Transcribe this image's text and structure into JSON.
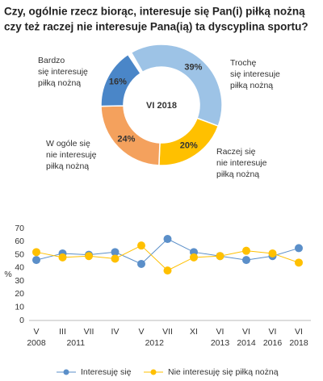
{
  "chart_data": [
    {
      "type": "donut",
      "title": [
        "Czy, ogólnie rzecz biorąc, interesuje się Pan(i) piłką nożną",
        "czy też raczej nie interesuje Pana(ią) ta dyscyplina sportu?"
      ],
      "center_label": "VI 2018",
      "categories": [
        [
          "Trochę",
          "się interesuje",
          "piłką nożną"
        ],
        [
          "Raczej się",
          "nie interesuje",
          "piłką nożną"
        ],
        [
          "W ogóle się",
          "nie interesuję",
          "piłką nożną"
        ],
        [
          "Bardzo",
          "się interesuję",
          "piłką nożną"
        ]
      ],
      "values": [
        39,
        20,
        24,
        16
      ],
      "value_labels": [
        "39%",
        "20%",
        "24%",
        "16%"
      ],
      "colors": [
        "#9dc3e6",
        "#ffc000",
        "#f4a15d",
        "#4a86c8"
      ]
    },
    {
      "type": "line",
      "x": [
        {
          "month": "V",
          "year": "2008"
        },
        {
          "month": "III",
          "year": "2011"
        },
        {
          "month": "VII",
          "year": "2011"
        },
        {
          "month": "IV",
          "year": "2012"
        },
        {
          "month": "V",
          "year": "2012"
        },
        {
          "month": "VII",
          "year": "2012"
        },
        {
          "month": "XI",
          "year": "2012"
        },
        {
          "month": "VI",
          "year": "2013"
        },
        {
          "month": "VI",
          "year": "2014"
        },
        {
          "month": "VI",
          "year": "2016"
        },
        {
          "month": "VI",
          "year": "2018"
        }
      ],
      "series": [
        {
          "name": "Interesuję się",
          "color": "#5b8fc9",
          "values": [
            46,
            51,
            50,
            52,
            43,
            62,
            52,
            49,
            46,
            49,
            55
          ]
        },
        {
          "name": "Nie interesuję się piłką nożną",
          "color": "#ffc000",
          "values": [
            52,
            48,
            49,
            47,
            57,
            38,
            48,
            49,
            53,
            51,
            44
          ]
        }
      ],
      "y_label": "%",
      "ylim": [
        0,
        70
      ],
      "yticks": [
        0,
        10,
        20,
        30,
        40,
        50,
        60,
        70
      ],
      "grid": false
    }
  ]
}
